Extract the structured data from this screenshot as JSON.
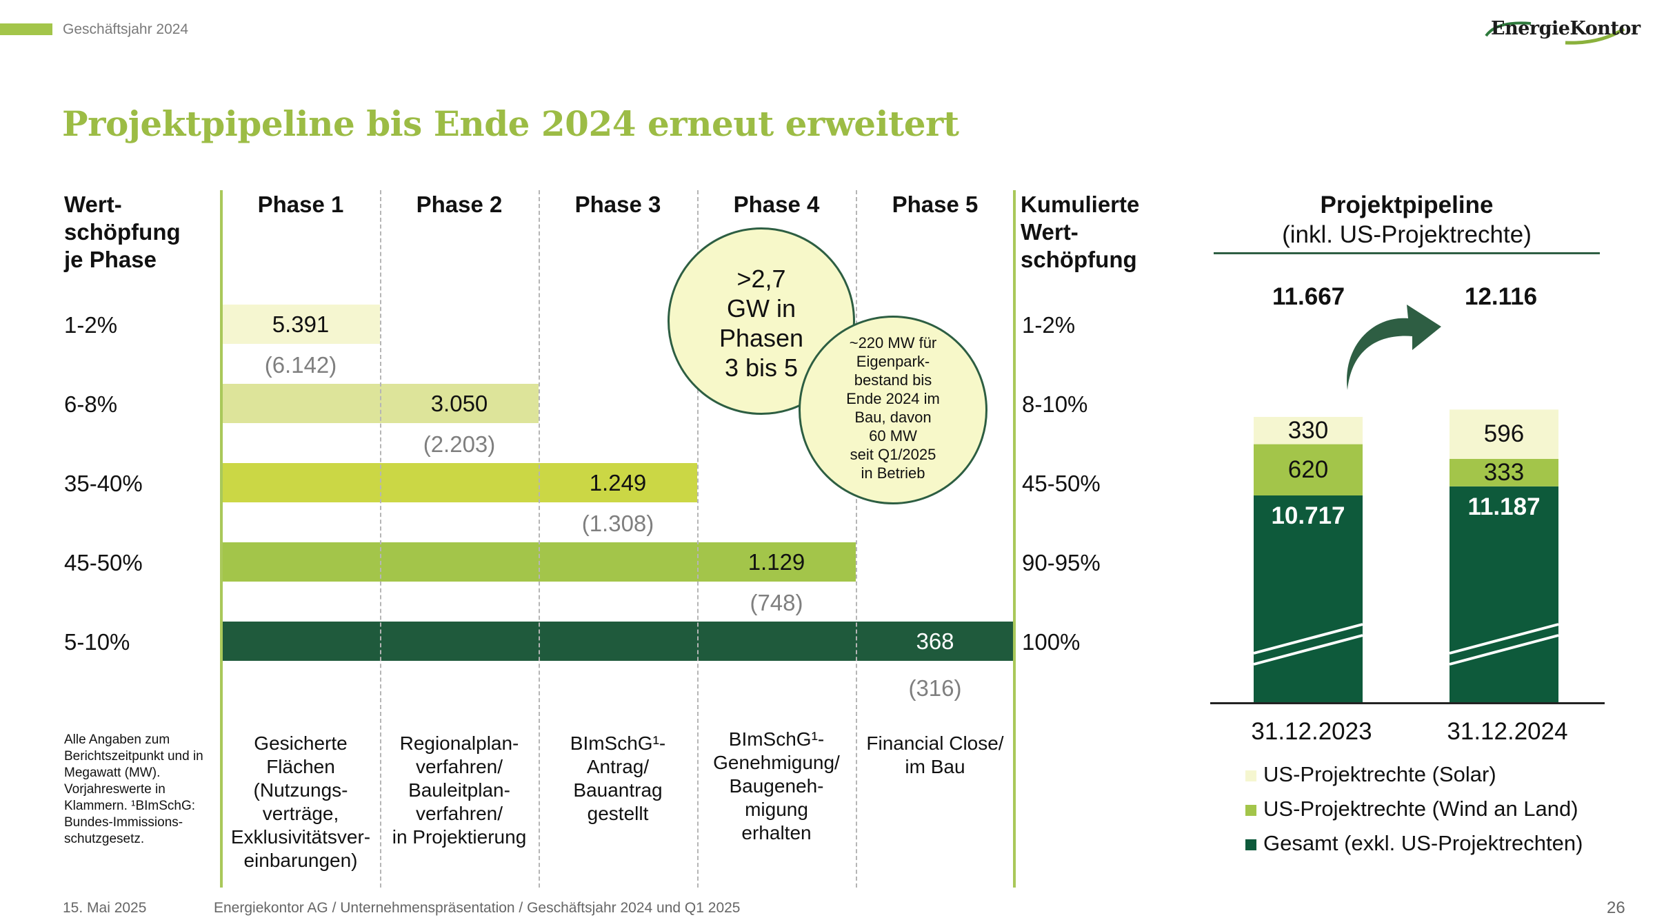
{
  "header": {
    "fiscal_year": "Geschäftsjahr 2024",
    "logo_text": "EnergieKontor"
  },
  "title": "Projektpipeline bis Ende 2024 erneut erweitert",
  "left_header": [
    "Wert-",
    "schöpfung",
    "je Phase"
  ],
  "right_header": [
    "Kumulierte",
    "Wert-",
    "schöpfung"
  ],
  "colors": {
    "accent": "#9cbc45",
    "phase1": "#f5f6d0",
    "phase2": "#dde49a",
    "phase3": "#cbd745",
    "phase4": "#a3c54a",
    "phase5": "#1f5a3c"
  },
  "chart_data": [
    {
      "type": "bar",
      "orientation": "horizontal",
      "categories": [
        "Phase 1",
        "Phase 2",
        "Phase 3",
        "Phase 4",
        "Phase 5"
      ],
      "value_share_per_phase": [
        "1-2%",
        "6-8%",
        "35-40%",
        "45-50%",
        "5-10%"
      ],
      "cumulative_value": [
        "1-2%",
        "8-10%",
        "45-50%",
        "90-95%",
        "100%"
      ],
      "values_label": [
        "5.391",
        "3.050",
        "1.249",
        "1.129",
        "368"
      ],
      "values": [
        5391,
        3050,
        1249,
        1129,
        368
      ],
      "previous_label": [
        "(6.142)",
        "(2.203)",
        "(1.308)",
        "(748)",
        "(316)"
      ],
      "previous_values": [
        6142,
        2203,
        1308,
        748,
        316
      ],
      "descriptions": [
        [
          "Gesicherte",
          "Flächen",
          "(Nutzungs-",
          "verträge,",
          "Exklusivitätsver-",
          "einbarungen)"
        ],
        [
          "Regionalplan-",
          "verfahren/",
          "Bauleitplan-",
          "verfahren/",
          "in Projektierung"
        ],
        [
          "BImSchG¹-",
          "Antrag/",
          "Bauantrag",
          "gestellt"
        ],
        [
          "BImSchG¹-",
          "Genehmigung/",
          "Baugeneh-",
          "migung",
          "erhalten"
        ],
        [
          "Financial Close/",
          "im Bau"
        ]
      ]
    },
    {
      "type": "bar",
      "stacked": true,
      "title": "Projektpipeline",
      "subtitle": "(inkl. US-Projektrechte)",
      "categories": [
        "31.12.2023",
        "31.12.2024"
      ],
      "totals_label": [
        "11.667",
        "12.116"
      ],
      "totals": [
        11667,
        12116
      ],
      "series": [
        {
          "name": "Gesamt (exkl. US-Projektrechten)",
          "values": [
            10717,
            11187
          ],
          "labels": [
            "10.717",
            "11.187"
          ],
          "color": "#0e5a3b"
        },
        {
          "name": "US-Projektrechte (Wind an Land)",
          "values": [
            620,
            333
          ],
          "labels": [
            "620",
            "333"
          ],
          "color": "#a3c54a"
        },
        {
          "name": "US-Projektrechte (Solar)",
          "values": [
            330,
            596
          ],
          "labels": [
            "330",
            "596"
          ],
          "color": "#f5f6d0"
        }
      ],
      "axis_break": true
    }
  ],
  "bubble_main": [
    ">2,7",
    "GW in",
    "Phasen",
    "3 bis 5"
  ],
  "bubble_small": [
    "~220 MW für",
    "Eigenpark-",
    "bestand bis",
    "Ende 2024 im",
    "Bau, davon",
    "60 MW",
    "seit Q1/2025",
    "in Betrieb"
  ],
  "footnote": [
    "Alle Angaben zum",
    "Berichtszeitpunkt und in",
    "Megawatt (MW).",
    "Vorjahreswerte in",
    "Klammern. ¹BImSchG:",
    "Bundes-Immissions-",
    "schutzgesetz."
  ],
  "footer": {
    "date": "15. Mai 2025",
    "text": "Energiekontor AG / Unternehmenspräsentation / Geschäftsjahr 2024 und Q1 2025",
    "page": "26"
  }
}
